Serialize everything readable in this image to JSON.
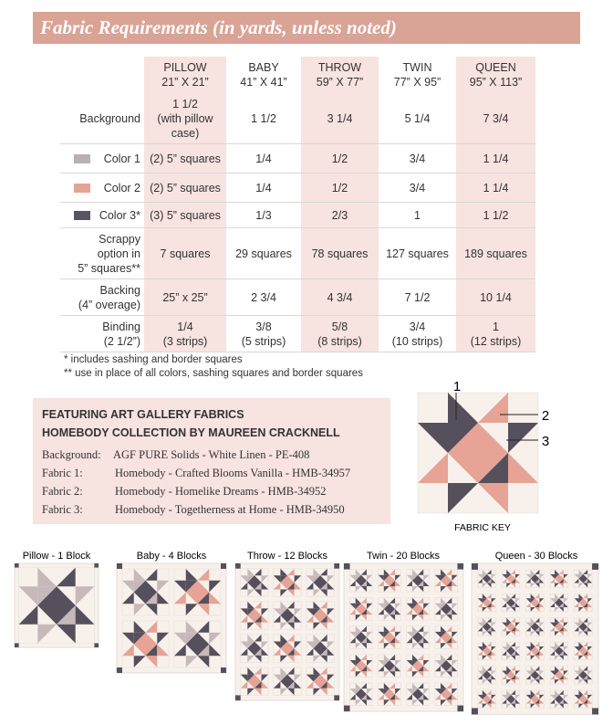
{
  "header": {
    "title": "Fabric Requirements (in yards, unless noted)"
  },
  "table": {
    "columns": [
      {
        "name": "PILLOW",
        "size": "21” X 21”"
      },
      {
        "name": "BABY",
        "size": "41” X 41”"
      },
      {
        "name": "THROW",
        "size": "59” X 77”"
      },
      {
        "name": "TWIN",
        "size": "77” X 95”"
      },
      {
        "name": "QUEEN",
        "size": "95” X 113”"
      }
    ],
    "rows": [
      {
        "label": [
          "Background"
        ],
        "cells": [
          [
            "1 1/2",
            "(with pillow",
            "case)"
          ],
          [
            "1 1/2"
          ],
          [
            "3 1/4"
          ],
          [
            "5 1/4"
          ],
          [
            "7 3/4"
          ]
        ]
      },
      {
        "label": [
          "Color 1"
        ],
        "cells": [
          [
            "(2) 5” squares"
          ],
          [
            "1/4"
          ],
          [
            "1/2"
          ],
          [
            "3/4"
          ],
          [
            "1 1/4"
          ]
        ]
      },
      {
        "label": [
          "Color 2"
        ],
        "cells": [
          [
            "(2) 5” squares"
          ],
          [
            "1/4"
          ],
          [
            "1/2"
          ],
          [
            "3/4"
          ],
          [
            "1 1/4"
          ]
        ]
      },
      {
        "label": [
          "Color 3*"
        ],
        "cells": [
          [
            "(3) 5” squares"
          ],
          [
            "1/3"
          ],
          [
            "2/3"
          ],
          [
            "1"
          ],
          [
            "1 1/2"
          ]
        ]
      },
      {
        "label": [
          "Scrappy",
          "option in",
          "5” squares**"
        ],
        "cells": [
          [
            "7  squares"
          ],
          [
            "29 squares"
          ],
          [
            "78 squares"
          ],
          [
            "127 squares"
          ],
          [
            "189 squares"
          ]
        ]
      },
      {
        "label": [
          "Backing",
          "(4” overage)"
        ],
        "cells": [
          [
            "25” x 25”"
          ],
          [
            "2 3/4"
          ],
          [
            "4 3/4"
          ],
          [
            "7 1/2"
          ],
          [
            "10 1/4"
          ]
        ]
      },
      {
        "label": [
          "Binding",
          "(2 1/2”)"
        ],
        "cells": [
          [
            "1/4",
            "(3 strips)"
          ],
          [
            "3/8",
            "(5 strips)"
          ],
          [
            "5/8",
            "(8 strips)"
          ],
          [
            "3/4",
            "(10 strips)"
          ],
          [
            "1",
            "(12 strips)"
          ]
        ]
      }
    ]
  },
  "footnotes": [
    "* includes sashing and border squares",
    "** use in place of all colors, sashing squares and border squares"
  ],
  "featuring": {
    "title": [
      "FEATURING ART GALLERY FABRICS",
      "HOMEBODY COLLECTION BY MAUREEN CRACKNELL"
    ],
    "fabrics": [
      {
        "label": "Background:",
        "value": "AGF PURE Solids - White Linen - PE-408"
      },
      {
        "label": "Fabric 1:",
        "value": "Homebody - Crafted Blooms Vanilla - HMB-34957"
      },
      {
        "label": "Fabric 2:",
        "value": "Homebody - Homelike Dreams - HMB-34952"
      },
      {
        "label": "Fabric 3:",
        "value": "Homebody - Togetherness at Home - HMB-34950"
      }
    ]
  },
  "fabric_key": {
    "markers": [
      "1",
      "2",
      "3"
    ],
    "caption": "FABRIC KEY"
  },
  "quilts": [
    "Pillow - 1 Block",
    "Baby - 4 Blocks",
    "Throw - 12 Blocks",
    "Twin - 20 Blocks",
    "Queen - 30 Blocks"
  ]
}
